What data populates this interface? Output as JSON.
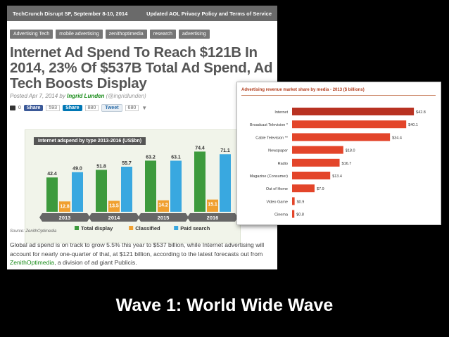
{
  "topbar": {
    "left": "TechCrunch Disrupt SF, September 8-10, 2014",
    "right": "Updated AOL Privacy Policy and Terms of Service"
  },
  "tags": [
    "Advertising Tech",
    "mobile advertising",
    "zenithoptimedia",
    "research",
    "advertising"
  ],
  "headline": "Internet Ad Spend To Reach $121B In 2014, 23% Of $537B Total Ad Spend, Ad Tech Boosts Display",
  "byline": {
    "posted": "Posted Apr 7, 2014 by",
    "author": "Ingrid Lunden",
    "handle": "(@ingridlunden)"
  },
  "social": {
    "comments": "0",
    "share1_label": "Share",
    "share1_count": "593",
    "share2_label": "Share",
    "share2_count": "880",
    "tweet_label": "Tweet",
    "tweet_count": "680"
  },
  "chart_data": [
    {
      "type": "bar",
      "title": "Internet adspend by type 2013-2016 (US$bn)",
      "categories": [
        "2013",
        "2014",
        "2015",
        "2016"
      ],
      "series": [
        {
          "name": "Total display",
          "values": [
            42.4,
            51.8,
            63.2,
            74.4
          ],
          "color": "#3d9a3d"
        },
        {
          "name": "Classified",
          "values": [
            12.8,
            13.5,
            14.2,
            15.1
          ],
          "color": "#f0a030"
        },
        {
          "name": "Paid search",
          "values": [
            49.0,
            55.7,
            63.1,
            71.1
          ],
          "color": "#39a8e0"
        }
      ],
      "ylim": [
        0,
        80
      ],
      "source": "Source: ZenithOptimedia"
    },
    {
      "type": "bar",
      "orientation": "horizontal",
      "title": "Advertising revenue market share by media - 2013 ($ billions)",
      "categories": [
        "Internet",
        "Broadcast Television *",
        "Cable Television **",
        "Newspaper",
        "Radio",
        "Magazine (Consumer)",
        "Out of Home",
        "Video Game",
        "Cinema"
      ],
      "values": [
        42.8,
        40.1,
        34.4,
        18.0,
        16.7,
        13.4,
        7.9,
        0.9,
        0.8
      ],
      "value_labels": [
        "$42.8",
        "$40.1",
        "$34.4",
        "$18.0",
        "$16.7",
        "$13.4",
        "$7.9",
        "$0.9",
        "$0.8"
      ],
      "color_top": "#b83222",
      "color": "#e3452a",
      "xlim": [
        0,
        45
      ]
    }
  ],
  "article_body": {
    "text1": "Global ad spend is on track to grow 5.5% this year to $537 billion, while Internet advertising will account for nearly one-quarter of that, at $121 billion, according to the latest forecasts out from ",
    "link": "ZenithOptimedia",
    "text2": ", a division of ad giant Publicis."
  },
  "caption": "Wave 1: World Wide Wave"
}
